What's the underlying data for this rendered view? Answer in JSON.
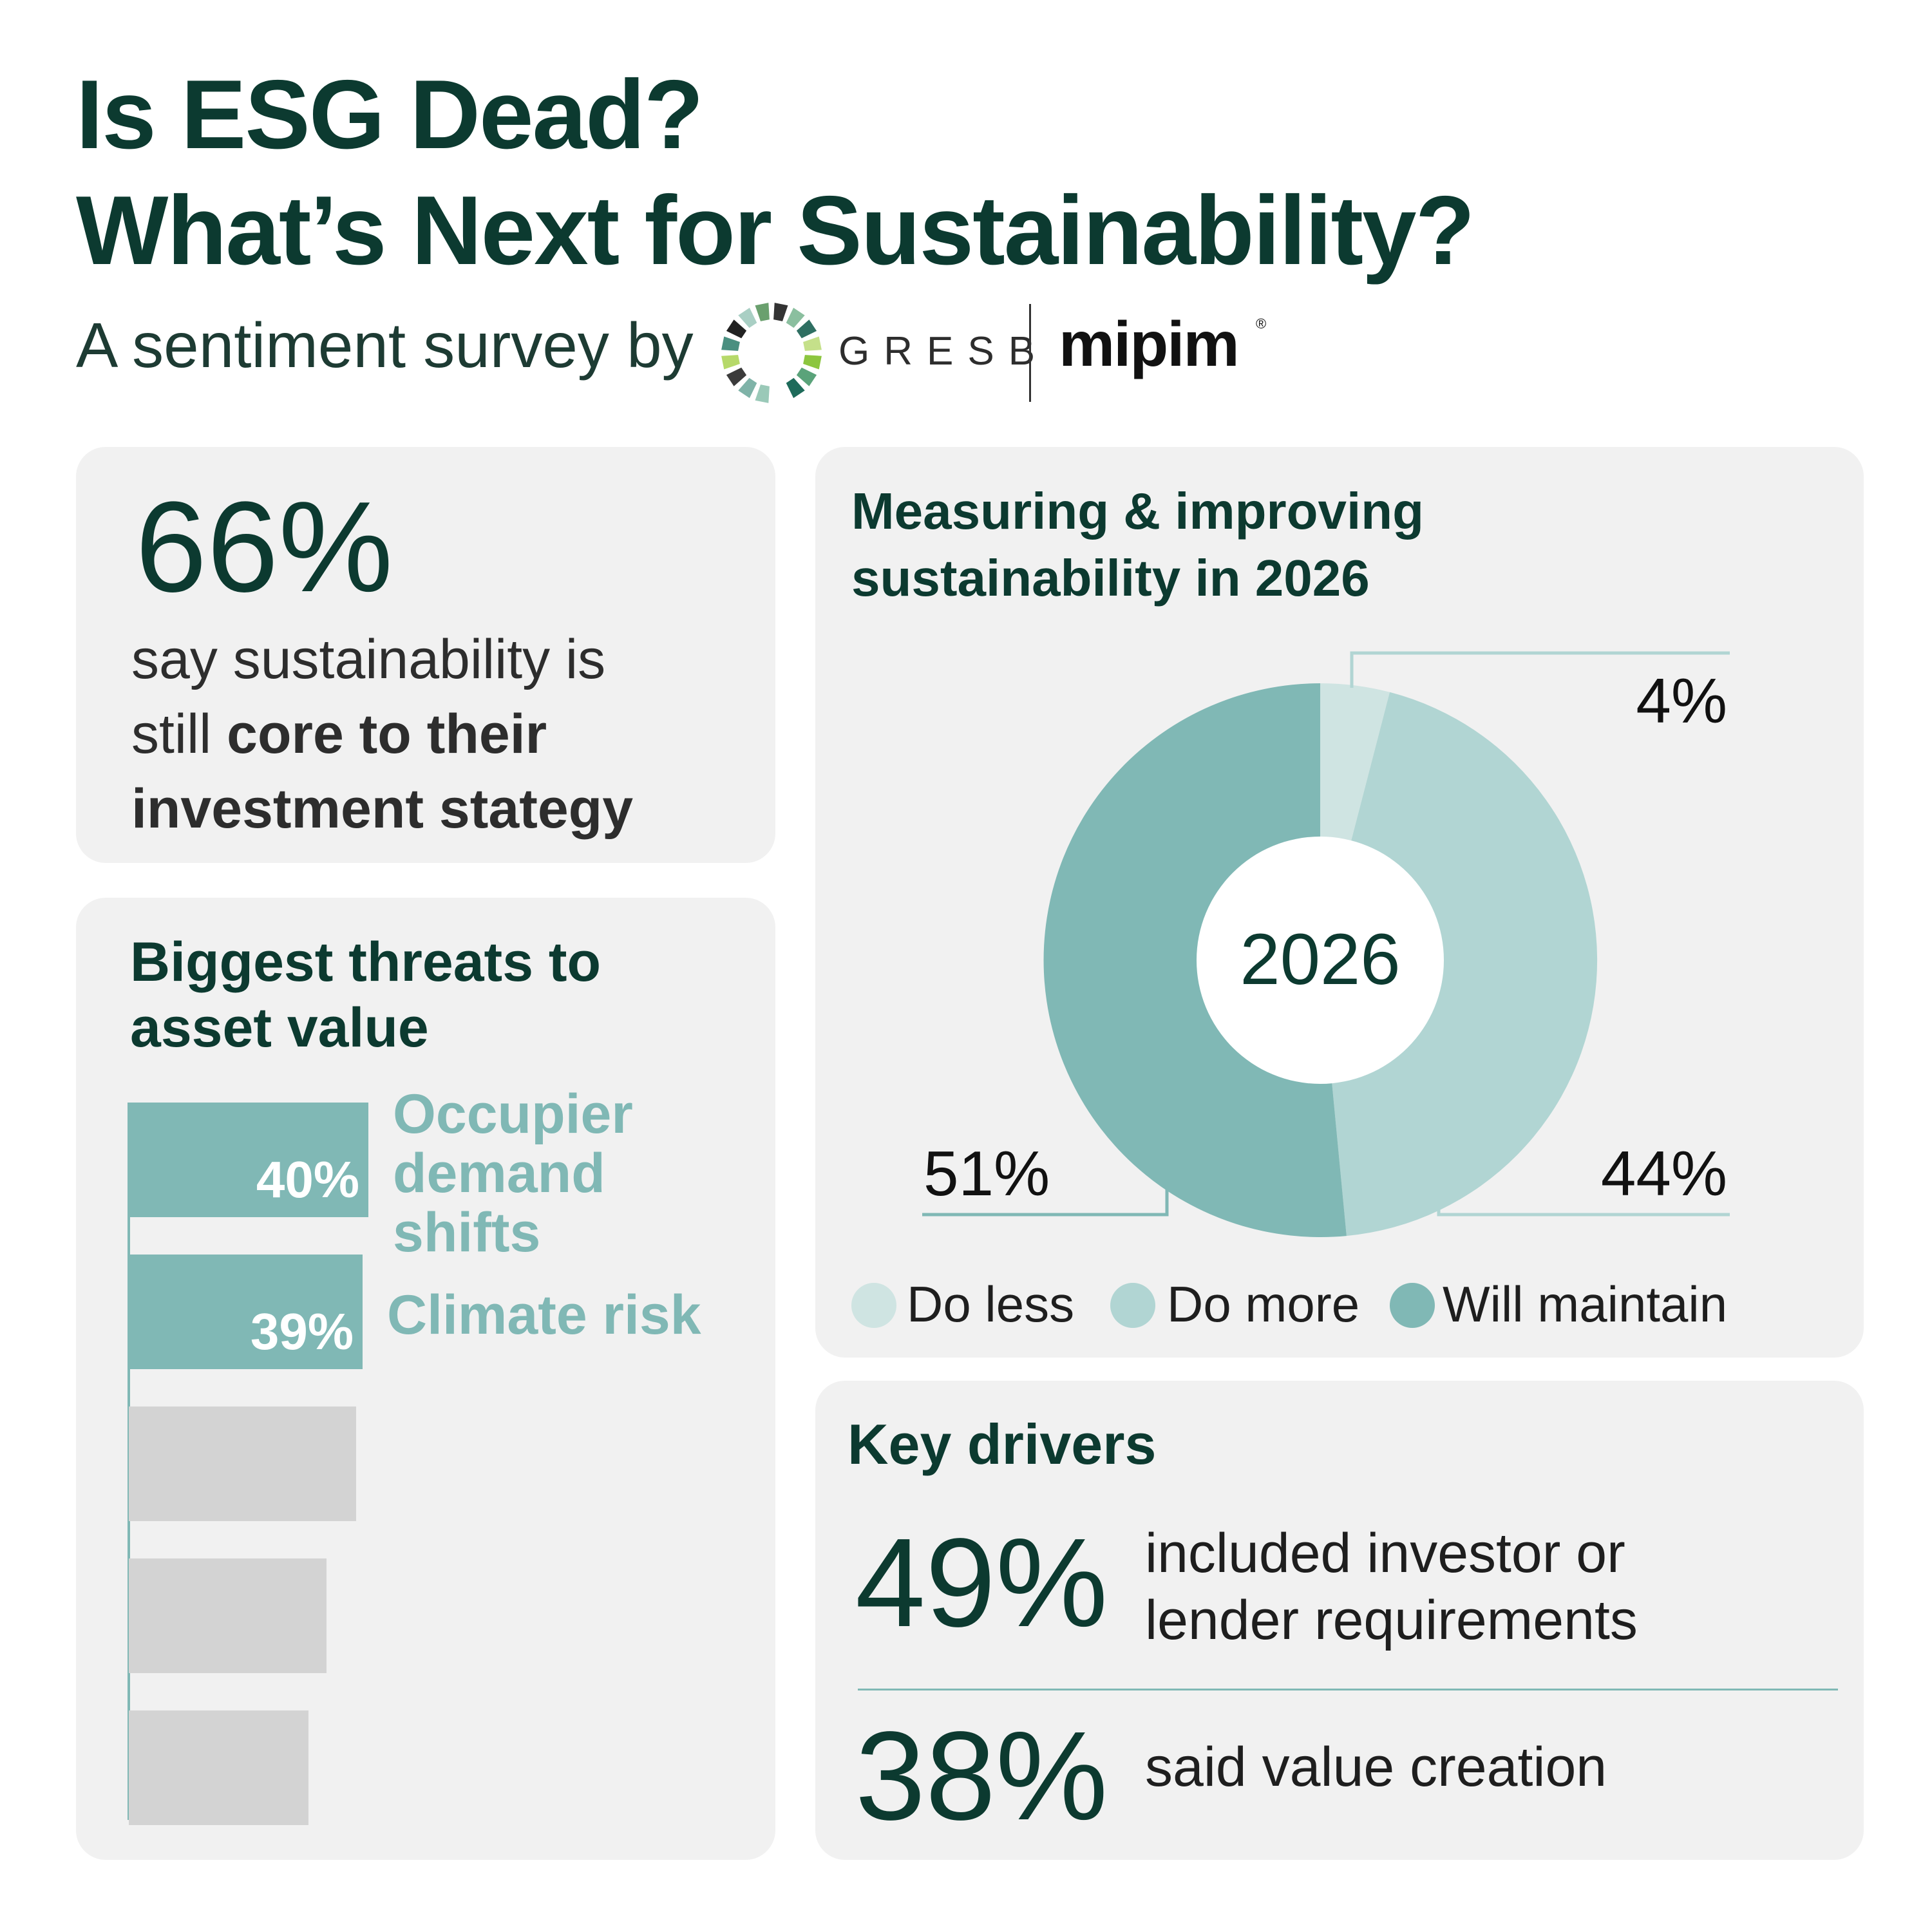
{
  "header": {
    "title_line1": "Is ESG Dead?",
    "title_line2": "What’s Next for Sustainability?",
    "subtitle": "A sentiment survey by",
    "logo_gresb_text": "GRESB",
    "logo_mipim_text": "mipim",
    "logo_mipim_mark": "®"
  },
  "core_card": {
    "value": "66%",
    "line1": "say sustainability is",
    "line2_plain": "still ",
    "line2_bold": "core to their",
    "line3_bold": "investment stategy"
  },
  "threats_card": {
    "title_line1": "Biggest threats to",
    "title_line2": "asset value",
    "bars": [
      {
        "pct_label": "40%",
        "value": 40,
        "label_lines": [
          "Occupier",
          "demand",
          "shifts"
        ]
      },
      {
        "pct_label": "39%",
        "value": 39,
        "label_lines": [
          "Climate risk"
        ]
      },
      {
        "pct_label": "",
        "value": 38,
        "label_lines": []
      },
      {
        "pct_label": "",
        "value": 33,
        "label_lines": []
      },
      {
        "pct_label": "",
        "value": 30,
        "label_lines": []
      }
    ]
  },
  "chart_card": {
    "title_line1": "Measuring & improving",
    "title_line2": "sustainability in 2026",
    "center_label": "2026",
    "slice_labels": {
      "do_less": "4%",
      "do_more": "44%",
      "will_maintain": "51%"
    },
    "legend": [
      "Do less",
      "Do more",
      "Will maintain"
    ]
  },
  "chart_data": {
    "type": "pie",
    "categories": [
      "Do less",
      "Do more",
      "Will maintain"
    ],
    "values": [
      4,
      44,
      51
    ],
    "colors": [
      "#cfe4e2",
      "#b1d5d3",
      "#80b8b5"
    ],
    "title": "Measuring & improving sustainability in 2026",
    "center_label": "2026",
    "legend_position": "bottom"
  },
  "drivers_card": {
    "title": "Key drivers",
    "items": [
      {
        "value": "49%",
        "line1": "included investor or",
        "line2": "lender requirements"
      },
      {
        "value": "38%",
        "line1": "said value creation",
        "line2": ""
      }
    ]
  },
  "colors": {
    "dark_green": "#0c3a30",
    "teal": "#80b8b5",
    "teal_light": "#b1d5d3",
    "teal_lighter": "#cfe4e2",
    "card_bg": "#f1f1f1",
    "bar_grey": "#d3d3d3"
  },
  "icons": {
    "gresb_logo": "gresb-ring-logo-icon"
  }
}
